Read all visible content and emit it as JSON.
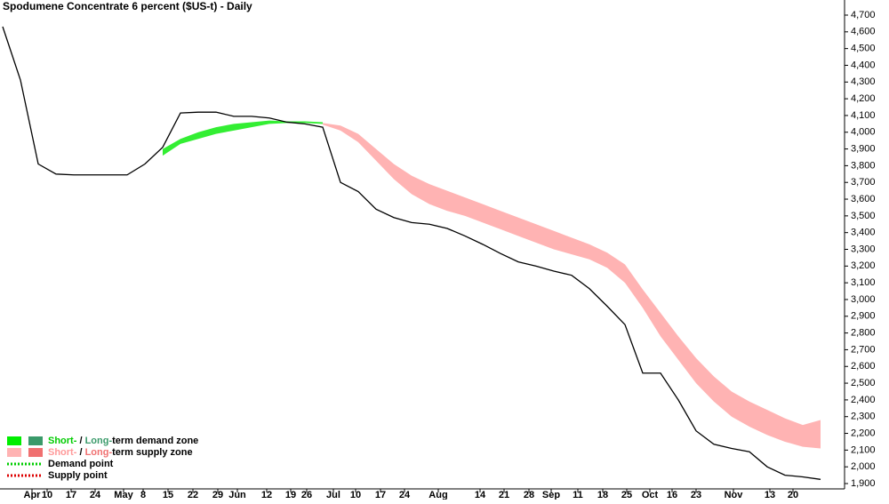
{
  "chart_data": {
    "type": "line",
    "title": "Spodumene Concentrate 6 percent ($US-t) - Daily",
    "x_labels": [
      "Apr",
      "10",
      "17",
      "24",
      "May",
      "8",
      "15",
      "22",
      "29",
      "Jun",
      "12",
      "19",
      "26",
      "Jul",
      "10",
      "17",
      "24",
      "Aug",
      "14",
      "21",
      "28",
      "Sep",
      "11",
      "18",
      "25",
      "Oct",
      "16",
      "23",
      "Nov",
      "13",
      "20"
    ],
    "ylim": [
      1900,
      4700
    ],
    "yticks": [
      {
        "value": 1900,
        "label": "1,900"
      },
      {
        "value": 2000,
        "label": "2,000"
      },
      {
        "value": 2100,
        "label": "2,100"
      },
      {
        "value": 2200,
        "label": "2,200"
      },
      {
        "value": 2300,
        "label": "2,300"
      },
      {
        "value": 2400,
        "label": "2,400"
      },
      {
        "value": 2500,
        "label": "2,500"
      },
      {
        "value": 2600,
        "label": "2,600"
      },
      {
        "value": 2700,
        "label": "2,700"
      },
      {
        "value": 2800,
        "label": "2,800"
      },
      {
        "value": 2900,
        "label": "2,900"
      },
      {
        "value": 3000,
        "label": "3,000"
      },
      {
        "value": 3100,
        "label": "3,100"
      },
      {
        "value": 3200,
        "label": "3,200"
      },
      {
        "value": 3300,
        "label": "3,300"
      },
      {
        "value": 3400,
        "label": "3,400"
      },
      {
        "value": 3500,
        "label": "3,500"
      },
      {
        "value": 3600,
        "label": "3,600"
      },
      {
        "value": 3700,
        "label": "3,700"
      },
      {
        "value": 3800,
        "label": "3,800"
      },
      {
        "value": 3900,
        "label": "3,900"
      },
      {
        "value": 4000,
        "label": "4,000"
      },
      {
        "value": 4100,
        "label": "4,100"
      },
      {
        "value": 4200,
        "label": "4,200"
      },
      {
        "value": 4300,
        "label": "4,300"
      },
      {
        "value": 4400,
        "label": "4,400"
      },
      {
        "value": 4500,
        "label": "4,500"
      },
      {
        "value": 4600,
        "label": "4,600"
      },
      {
        "value": 4700,
        "label": "4,700"
      }
    ],
    "price": {
      "color": "#000000",
      "values": [
        4631,
        4312,
        3810,
        3750,
        3745,
        3745,
        3745,
        3745,
        3810,
        3910,
        4115,
        4120,
        4120,
        4095,
        4095,
        4085,
        4060,
        4050,
        4030,
        3700,
        3645,
        3540,
        3490,
        3460,
        3450,
        3425,
        3380,
        3330,
        3275,
        3225,
        3200,
        3170,
        3145,
        3065,
        2960,
        2850,
        2560,
        2560,
        2400,
        2215,
        2135,
        2110,
        2090,
        2000,
        1950,
        1940,
        1925
      ]
    },
    "bands": [
      {
        "color": "#33ee33",
        "upper": [
          null,
          null,
          null,
          null,
          null,
          null,
          null,
          null,
          null,
          3900,
          3960,
          4000,
          4030,
          4050,
          4060,
          4070,
          4065,
          4065,
          4060,
          null,
          null,
          null,
          null,
          null,
          null,
          null,
          null,
          null,
          null,
          null,
          null,
          null,
          null,
          null,
          null,
          null,
          null,
          null,
          null,
          null,
          null,
          null,
          null,
          null,
          null,
          null,
          null
        ],
        "lower": [
          null,
          null,
          null,
          null,
          null,
          null,
          null,
          null,
          null,
          3860,
          3930,
          3960,
          3990,
          4010,
          4030,
          4050,
          4055,
          4055,
          4050,
          null,
          null,
          null,
          null,
          null,
          null,
          null,
          null,
          null,
          null,
          null,
          null,
          null,
          null,
          null,
          null,
          null,
          null,
          null,
          null,
          null,
          null,
          null,
          null,
          null,
          null,
          null,
          null
        ]
      },
      {
        "color": "#ffb3b3",
        "upper": [
          null,
          null,
          null,
          null,
          null,
          null,
          null,
          null,
          null,
          null,
          null,
          null,
          null,
          null,
          null,
          null,
          null,
          null,
          4055,
          4040,
          3990,
          3900,
          3810,
          3740,
          3690,
          3650,
          3610,
          3570,
          3530,
          3490,
          3450,
          3410,
          3370,
          3330,
          3280,
          3210,
          3060,
          2920,
          2780,
          2650,
          2540,
          2450,
          2390,
          2340,
          2290,
          2250,
          2280
        ],
        "lower": [
          null,
          null,
          null,
          null,
          null,
          null,
          null,
          null,
          null,
          null,
          null,
          null,
          null,
          null,
          null,
          null,
          null,
          null,
          4045,
          4010,
          3940,
          3830,
          3720,
          3630,
          3570,
          3530,
          3500,
          3460,
          3420,
          3380,
          3340,
          3300,
          3270,
          3240,
          3190,
          3100,
          2950,
          2780,
          2640,
          2500,
          2390,
          2300,
          2240,
          2190,
          2150,
          2120,
          2110
        ]
      }
    ],
    "legend": [
      {
        "swatches": [
          "#00ee00",
          "#3a9a6a"
        ],
        "parts": [
          {
            "text": "Short-",
            "color": "#00cc00"
          },
          {
            "text": " / ",
            "color": "#000000"
          },
          {
            "text": "Long-",
            "color": "#3a9a6a"
          },
          {
            "text": "term demand zone",
            "color": "#000000"
          }
        ]
      },
      {
        "swatches": [
          "#ffb3b3",
          "#f07070"
        ],
        "parts": [
          {
            "text": "Short-",
            "color": "#ff9999"
          },
          {
            "text": " / ",
            "color": "#000000"
          },
          {
            "text": "Long-",
            "color": "#f07070"
          },
          {
            "text": "term supply zone",
            "color": "#000000"
          }
        ]
      },
      {
        "dot": "#00cc00",
        "parts": [
          {
            "text": "Demand point",
            "color": "#000000"
          }
        ]
      },
      {
        "dot": "#dd0000",
        "parts": [
          {
            "text": "Supply point",
            "color": "#000000"
          }
        ]
      }
    ]
  }
}
